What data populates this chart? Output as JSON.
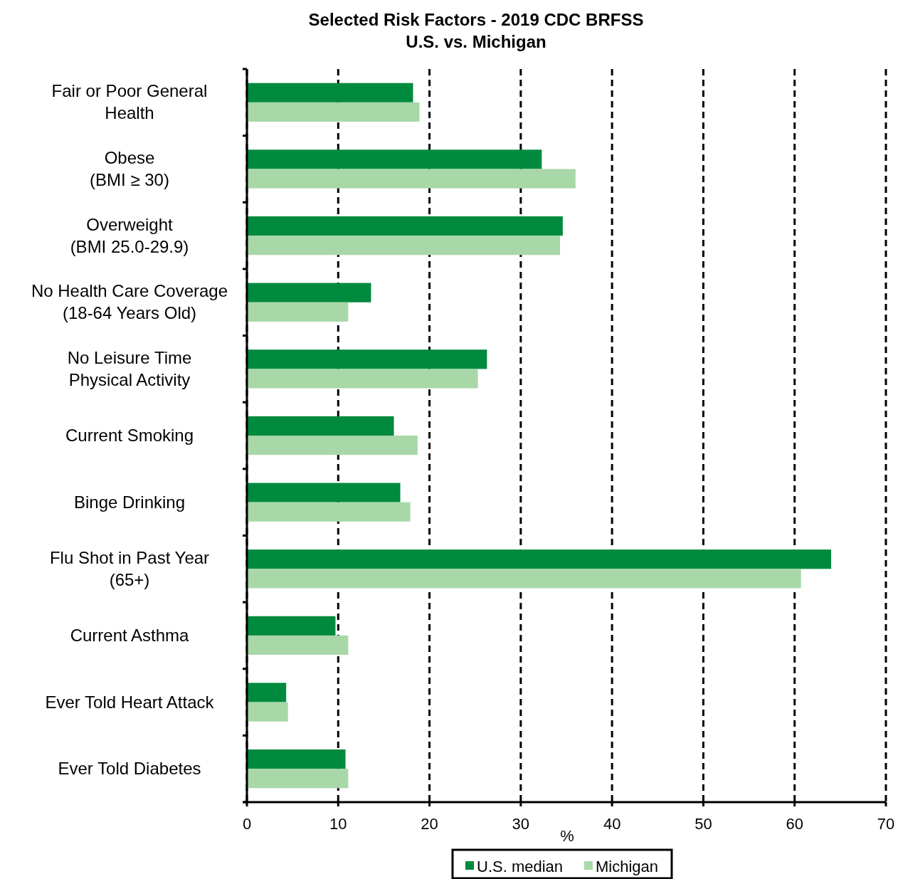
{
  "chart_data": {
    "type": "bar",
    "orientation": "horizontal",
    "title": "Selected Risk Factors - 2019 CDC BRFSS\nU.S. vs. Michigan",
    "xlabel": "%",
    "categories": [
      "Fair or Poor General\nHealth",
      "Obese\n(BMI ≥ 30)",
      "Overweight\n(BMI 25.0-29.9)",
      "No Health Care Coverage\n(18-64 Years Old)",
      "No Leisure Time\nPhysical Activity",
      "Current Smoking",
      "Binge Drinking",
      "Flu Shot in Past Year\n(65+)",
      "Current Asthma",
      "Ever Told Heart Attack",
      "Ever Told Diabetes"
    ],
    "series": [
      {
        "name": "U.S. median",
        "color": "#008a3e",
        "values": [
          18.2,
          32.3,
          34.6,
          13.6,
          26.3,
          16.1,
          16.8,
          64.0,
          9.7,
          4.3,
          10.8
        ]
      },
      {
        "name": "Michigan",
        "color": "#a8d8a8",
        "values": [
          18.9,
          36.0,
          34.3,
          11.1,
          25.3,
          18.7,
          17.9,
          60.7,
          11.1,
          4.5,
          11.1
        ]
      }
    ],
    "xlim": [
      0,
      70
    ],
    "xticks": [
      0,
      10,
      20,
      30,
      40,
      50,
      60,
      70
    ],
    "grid": "x",
    "line_style": "dashed",
    "legend": "bottom"
  }
}
